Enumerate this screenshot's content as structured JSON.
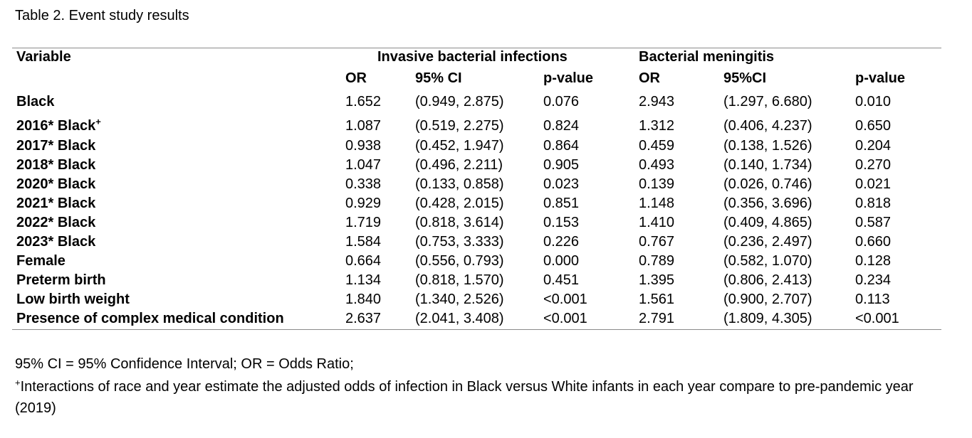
{
  "title": "Table 2. Event study results",
  "headers": {
    "variable": "Variable",
    "group1": "Invasive bacterial infections",
    "group2": "Bacterial meningitis",
    "g1_cols": [
      "OR",
      "95% CI",
      "p-value"
    ],
    "g2_cols": [
      "OR",
      "95%CI",
      "p-value"
    ]
  },
  "rows": [
    {
      "label": "Black",
      "sup": "",
      "or1": "1.652",
      "ci1": "(0.949, 2.875)",
      "p1": "0.076",
      "or2": "2.943",
      "ci2": "(1.297, 6.680)",
      "p2": "0.010"
    },
    {
      "label": "2016* Black",
      "sup": "+",
      "or1": "1.087",
      "ci1": "(0.519, 2.275)",
      "p1": "0.824",
      "or2": "1.312",
      "ci2": "(0.406, 4.237)",
      "p2": "0.650"
    },
    {
      "label": "2017* Black",
      "sup": "",
      "or1": "0.938",
      "ci1": "(0.452, 1.947)",
      "p1": "0.864",
      "or2": "0.459",
      "ci2": "(0.138, 1.526)",
      "p2": "0.204"
    },
    {
      "label": "2018* Black",
      "sup": "",
      "or1": "1.047",
      "ci1": "(0.496, 2.211)",
      "p1": "0.905",
      "or2": "0.493",
      "ci2": "(0.140, 1.734)",
      "p2": "0.270"
    },
    {
      "label": "2020* Black",
      "sup": "",
      "or1": "0.338",
      "ci1": "(0.133, 0.858)",
      "p1": "0.023",
      "or2": "0.139",
      "ci2": "(0.026, 0.746)",
      "p2": "0.021"
    },
    {
      "label": "2021* Black",
      "sup": "",
      "or1": "0.929",
      "ci1": "(0.428, 2.015)",
      "p1": "0.851",
      "or2": "1.148",
      "ci2": "(0.356, 3.696)",
      "p2": "0.818"
    },
    {
      "label": "2022* Black",
      "sup": "",
      "or1": "1.719",
      "ci1": "(0.818, 3.614)",
      "p1": "0.153",
      "or2": "1.410",
      "ci2": "(0.409, 4.865)",
      "p2": "0.587"
    },
    {
      "label": "2023* Black",
      "sup": "",
      "or1": "1.584",
      "ci1": "(0.753, 3.333)",
      "p1": "0.226",
      "or2": "0.767",
      "ci2": "(0.236, 2.497)",
      "p2": "0.660"
    },
    {
      "label": "Female",
      "sup": "",
      "or1": "0.664",
      "ci1": "(0.556, 0.793)",
      "p1": "0.000",
      "or2": "0.789",
      "ci2": "(0.582, 1.070)",
      "p2": "0.128"
    },
    {
      "label": "Preterm birth",
      "sup": "",
      "or1": "1.134",
      "ci1": "(0.818, 1.570)",
      "p1": "0.451",
      "or2": "1.395",
      "ci2": "(0.806, 2.413)",
      "p2": "0.234"
    },
    {
      "label": "Low birth weight",
      "sup": "",
      "or1": "1.840",
      "ci1": "(1.340, 2.526)",
      "p1": "<0.001",
      "or2": "1.561",
      "ci2": "(0.900, 2.707)",
      "p2": "0.113"
    },
    {
      "label": "Presence of complex medical condition",
      "sup": "",
      "or1": "2.637",
      "ci1": "(2.041, 3.408)",
      "p1": "<0.001",
      "or2": "2.791",
      "ci2": "(1.809, 4.305)",
      "p2": "<0.001"
    }
  ],
  "footnotes": {
    "abbrev": "95% CI = 95% Confidence Interval; OR = Odds Ratio;",
    "interaction_sup": "+",
    "interaction": "Interactions of race and year estimate the adjusted odds of infection in Black versus White infants in each year compare to pre-pandemic year (2019)"
  }
}
